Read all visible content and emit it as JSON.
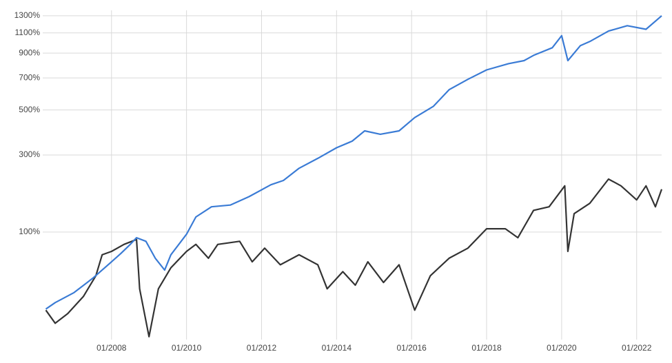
{
  "chart_data": {
    "type": "line",
    "yscale": "log-return",
    "grid": true,
    "xlim": [
      "2006-03",
      "2022-09"
    ],
    "xticks": [
      {
        "value": "2008-01",
        "label": "01/2008"
      },
      {
        "value": "2010-01",
        "label": "01/2010"
      },
      {
        "value": "2012-01",
        "label": "01/2012"
      },
      {
        "value": "2014-01",
        "label": "01/2014"
      },
      {
        "value": "2016-01",
        "label": "01/2016"
      },
      {
        "value": "2018-01",
        "label": "01/2018"
      },
      {
        "value": "2020-01",
        "label": "01/2020"
      },
      {
        "value": "2022-01",
        "label": "01/2022"
      }
    ],
    "ylim": [
      -24,
      1370
    ],
    "yticks": [
      {
        "value": 100,
        "label": "100%"
      },
      {
        "value": 300,
        "label": "300%"
      },
      {
        "value": 500,
        "label": "500%"
      },
      {
        "value": 700,
        "label": "700%"
      },
      {
        "value": 900,
        "label": "900%"
      },
      {
        "value": 1100,
        "label": "1100%"
      },
      {
        "value": 1300,
        "label": "1300%"
      }
    ],
    "series": [
      {
        "color": "#3a7bd5",
        "x": [
          "2006-04",
          "2006-07",
          "2007-01",
          "2007-07",
          "2008-01",
          "2008-04",
          "2008-07",
          "2008-09",
          "2008-12",
          "2009-03",
          "2009-06",
          "2009-08",
          "2010-01",
          "2010-04",
          "2010-09",
          "2011-03",
          "2011-09",
          "2012-04",
          "2012-08",
          "2013-01",
          "2013-07",
          "2014-01",
          "2014-06",
          "2014-10",
          "2015-03",
          "2015-09",
          "2016-02",
          "2016-08",
          "2017-01",
          "2017-07",
          "2018-01",
          "2018-08",
          "2019-01",
          "2019-04",
          "2019-10",
          "2020-01",
          "2020-03",
          "2020-07",
          "2020-10",
          "2021-04",
          "2021-10",
          "2022-04",
          "2022-09"
        ],
        "values": [
          0,
          6,
          16,
          32,
          53,
          65,
          79,
          90,
          84,
          58,
          42,
          63,
          96,
          129,
          151,
          155,
          175,
          206,
          218,
          255,
          288,
          327,
          353,
          397,
          382,
          397,
          460,
          520,
          620,
          690,
          760,
          810,
          835,
          880,
          950,
          1070,
          835,
          970,
          1010,
          1120,
          1180,
          1140,
          1300
        ]
      },
      {
        "color": "#333333",
        "x": [
          "2006-04",
          "2006-07",
          "2006-11",
          "2007-04",
          "2007-08",
          "2007-10",
          "2008-01",
          "2008-05",
          "2008-09",
          "2008-10",
          "2009-01",
          "2009-04",
          "2009-08",
          "2010-01",
          "2010-04",
          "2010-08",
          "2010-11",
          "2011-06",
          "2011-10",
          "2012-02",
          "2012-07",
          "2013-01",
          "2013-07",
          "2013-10",
          "2014-03",
          "2014-07",
          "2014-11",
          "2015-04",
          "2015-09",
          "2016-02",
          "2016-07",
          "2017-01",
          "2017-07",
          "2018-01",
          "2018-07",
          "2018-11",
          "2019-04",
          "2019-09",
          "2020-02",
          "2020-03",
          "2020-05",
          "2020-10",
          "2021-04",
          "2021-08",
          "2022-01",
          "2022-04",
          "2022-07",
          "2022-09"
        ],
        "values": [
          -1,
          -12,
          -4,
          12,
          35,
          63,
          68,
          79,
          87,
          20,
          -22,
          20,
          45,
          68,
          79,
          58,
          79,
          84,
          53,
          73,
          49,
          63,
          49,
          20,
          40,
          24,
          53,
          27,
          49,
          -1,
          35,
          58,
          73,
          106,
          106,
          90,
          143,
          151,
          203,
          68,
          136,
          159,
          222,
          203,
          167,
          203,
          151,
          194
        ]
      }
    ]
  }
}
